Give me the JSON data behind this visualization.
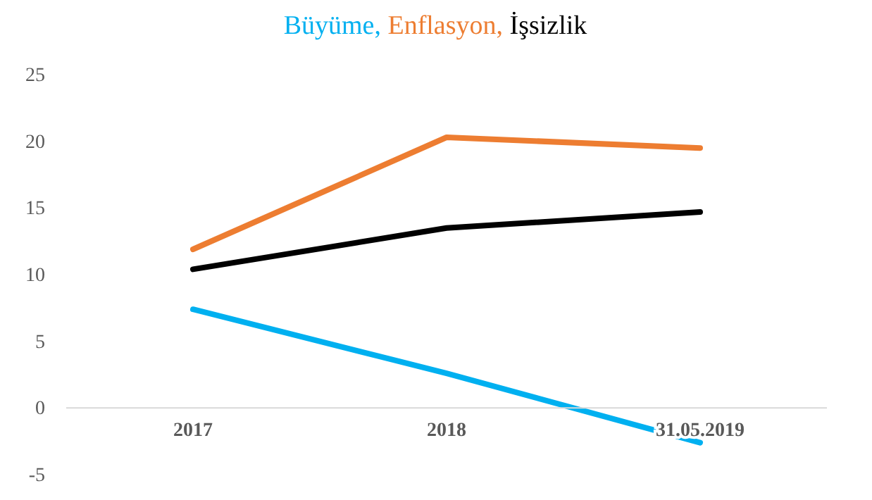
{
  "chart_data": {
    "type": "line",
    "title": "Büyüme, Enflasyon, İşsizlik",
    "categories": [
      "2017",
      "2018",
      "31.05.2019"
    ],
    "series": [
      {
        "color": "#00b0f0",
        "values": [
          7.4,
          2.6,
          -2.6
        ]
      },
      {
        "color": "#ed7d31",
        "values": [
          11.9,
          20.3,
          19.5
        ]
      },
      {
        "color": "#000000",
        "values": [
          10.4,
          13.5,
          14.7
        ]
      }
    ],
    "ylim": [
      -5,
      25
    ],
    "yticks": [
      -5,
      0,
      5,
      10,
      15,
      20,
      25
    ],
    "grid": false,
    "marker": "none",
    "line_style": "solid"
  }
}
